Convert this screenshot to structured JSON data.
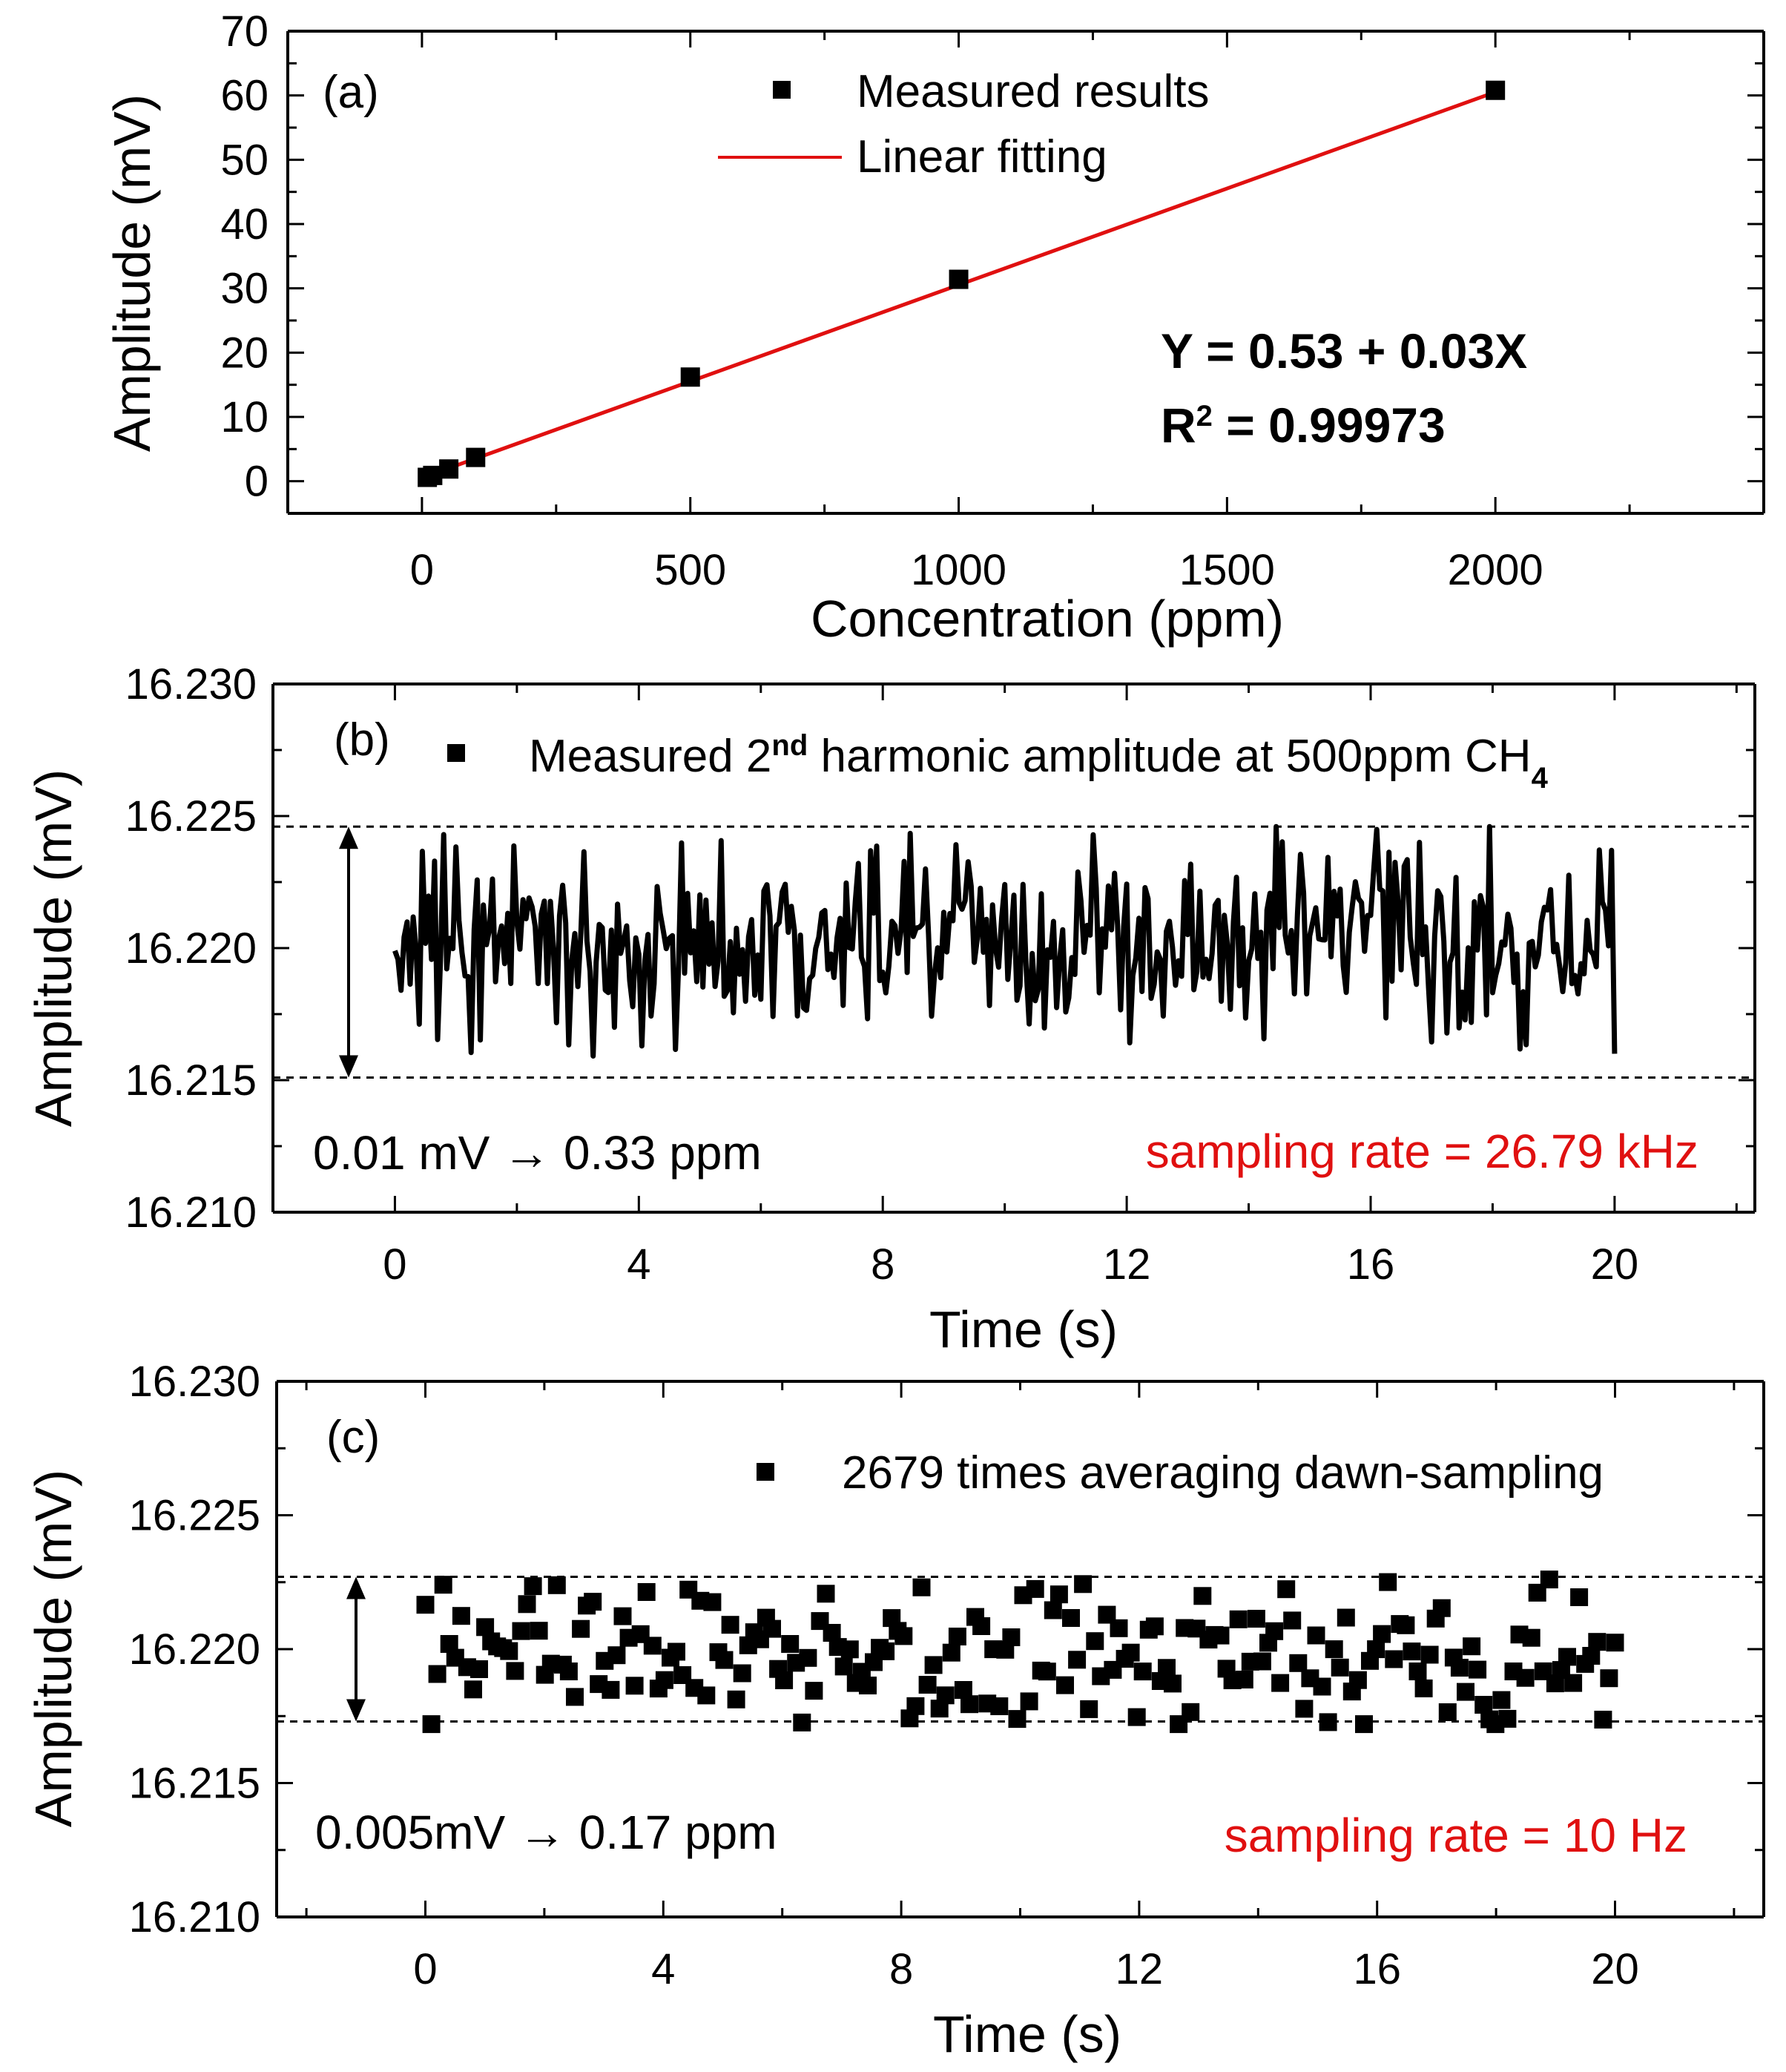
{
  "chart_data": [
    {
      "panel": "a",
      "type": "scatter",
      "panel_label": "(a)",
      "xlabel": "Concentration (ppm)",
      "ylabel": "Amplitude (mV)",
      "xlim": [
        -250,
        2500
      ],
      "ylim": [
        -5,
        70
      ],
      "xticks": [
        0,
        500,
        1000,
        1500,
        2000
      ],
      "yticks": [
        0,
        10,
        20,
        30,
        40,
        50,
        60,
        70
      ],
      "series": [
        {
          "name": "Measured results",
          "kind": "markers",
          "color": "#000000",
          "x": [
            10,
            20,
            50,
            100,
            500,
            1000,
            2000
          ],
          "y": [
            0.6,
            0.9,
            1.9,
            3.7,
            16.2,
            31.4,
            60.8
          ]
        },
        {
          "name": "Linear fitting",
          "kind": "line",
          "color": "#e01010",
          "intercept": 0.53,
          "slope": 0.03,
          "x_range": [
            10,
            2000
          ]
        }
      ],
      "annotations": {
        "equation": "Y = 0.53 + 0.03X",
        "r2_prefix": "R",
        "r2_sup": "2",
        "r2_value": " = 0.99973"
      }
    },
    {
      "panel": "b",
      "type": "line",
      "panel_label": "(b)",
      "xlabel": "Time (s)",
      "ylabel": "Amplitude (mV)",
      "xlim": [
        -2,
        22.3
      ],
      "ylim": [
        16.21,
        16.23
      ],
      "xticks": [
        0,
        4,
        8,
        12,
        16,
        20
      ],
      "yticks": [
        "16.210",
        "16.215",
        "16.220",
        "16.225",
        "16.230"
      ],
      "series": [
        {
          "name": "Measured 2nd harmonic amplitude at 500ppm CH4",
          "color": "#000000",
          "t_start": 0,
          "t_end": 20,
          "center": 16.2202,
          "noise_low": 16.2151,
          "noise_high": 16.2246,
          "n_points": 400
        }
      ],
      "legend": {
        "prefix": "Measured 2",
        "sup": "nd",
        "middle": " harmonic amplitude at 500ppm CH",
        "sub": "4"
      },
      "reference_lines": [
        16.2246,
        16.2151
      ],
      "annotations": {
        "note": "0.01 mV → 0.33 ppm",
        "rate": "sampling rate = 26.79 kHz"
      }
    },
    {
      "panel": "c",
      "type": "scatter",
      "panel_label": "(c)",
      "xlabel": "Time (s)",
      "ylabel": "Amplitude (mV)",
      "xlim": [
        -2.5,
        22.5
      ],
      "ylim": [
        16.21,
        16.23
      ],
      "xticks": [
        0,
        4,
        8,
        12,
        16,
        20
      ],
      "yticks": [
        "16.210",
        "16.215",
        "16.220",
        "16.225",
        "16.230"
      ],
      "series": [
        {
          "name": "2679 times averaging dawn-sampling",
          "color": "#000000",
          "t_start": 0,
          "t_end": 20,
          "center": 16.2198,
          "noise_low": 16.2172,
          "noise_high": 16.2226,
          "n_points": 200
        }
      ],
      "reference_lines": [
        16.2227,
        16.2173
      ],
      "annotations": {
        "note": "0.005mV → 0.17 ppm",
        "rate": "sampling rate = 10 Hz"
      }
    }
  ]
}
